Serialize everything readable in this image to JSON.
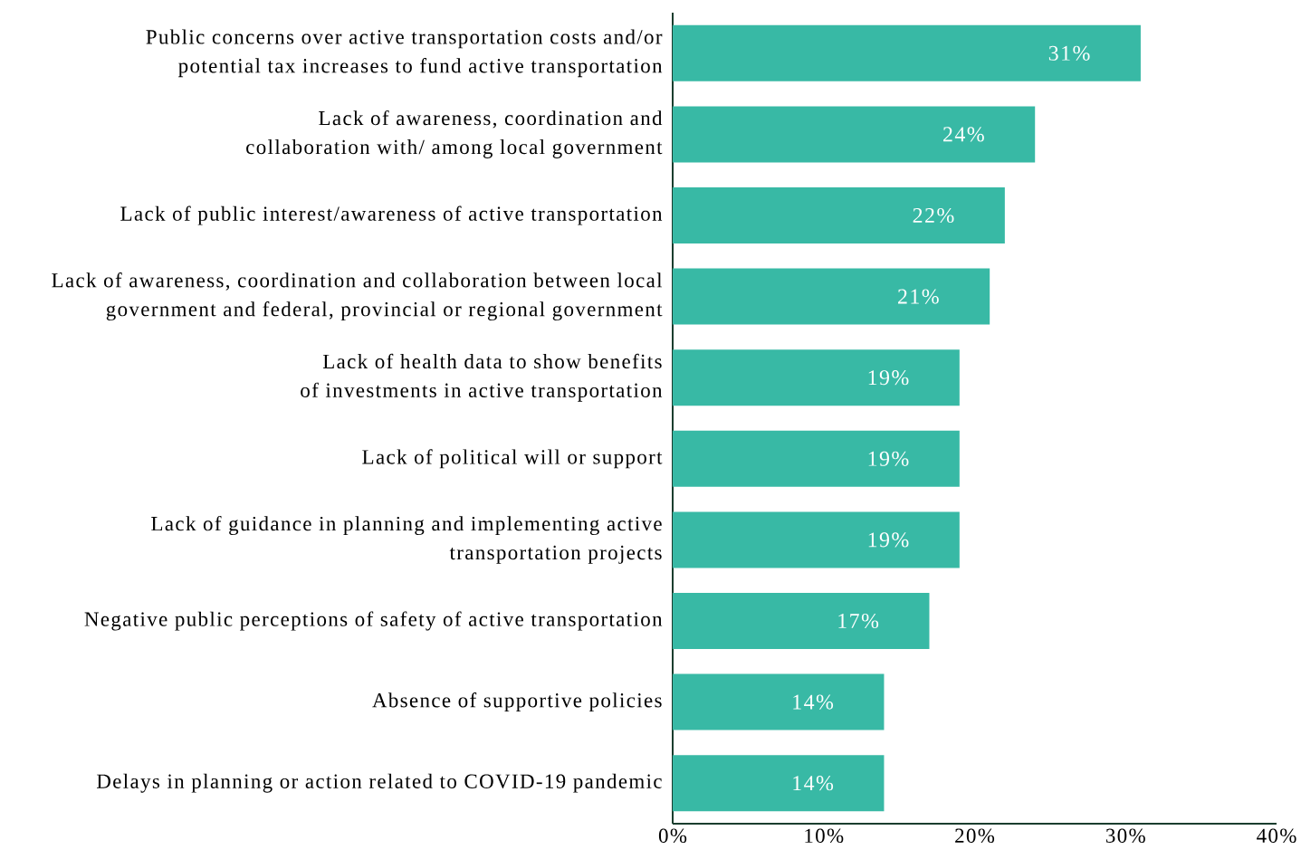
{
  "chart_data": {
    "type": "bar",
    "orientation": "horizontal",
    "categories": [
      "Public concerns over active transportation costs and/or potential tax increases to fund active transportation",
      "Lack of awareness, coordination and collaboration with/ among local government",
      "Lack of public interest/awareness of active transportation",
      "Lack of awareness, coordination and collaboration between local government and federal, provincial or regional government",
      "Lack of health data to show benefits of investments in active transportation",
      "Lack of political will or support",
      "Lack of guidance in planning and implementing active transportation projects",
      "Negative public perceptions of safety of active transportation",
      "Absence of supportive policies",
      "Delays in planning or action related to COVID-19 pandemic"
    ],
    "values": [
      31,
      24,
      22,
      21,
      19,
      19,
      19,
      17,
      14,
      14
    ],
    "value_labels": [
      "31%",
      "24%",
      "22%",
      "21%",
      "19%",
      "19%",
      "19%",
      "17%",
      "14%",
      "14%"
    ],
    "color": "#38b9a5",
    "xlim": [
      0,
      40
    ],
    "xticks": [
      {
        "value": 0,
        "label": "0%"
      },
      {
        "value": 10,
        "label": "10%"
      },
      {
        "value": 20,
        "label": "20%"
      },
      {
        "value": 30,
        "label": "30%"
      },
      {
        "value": 40,
        "label": "40%"
      }
    ]
  }
}
